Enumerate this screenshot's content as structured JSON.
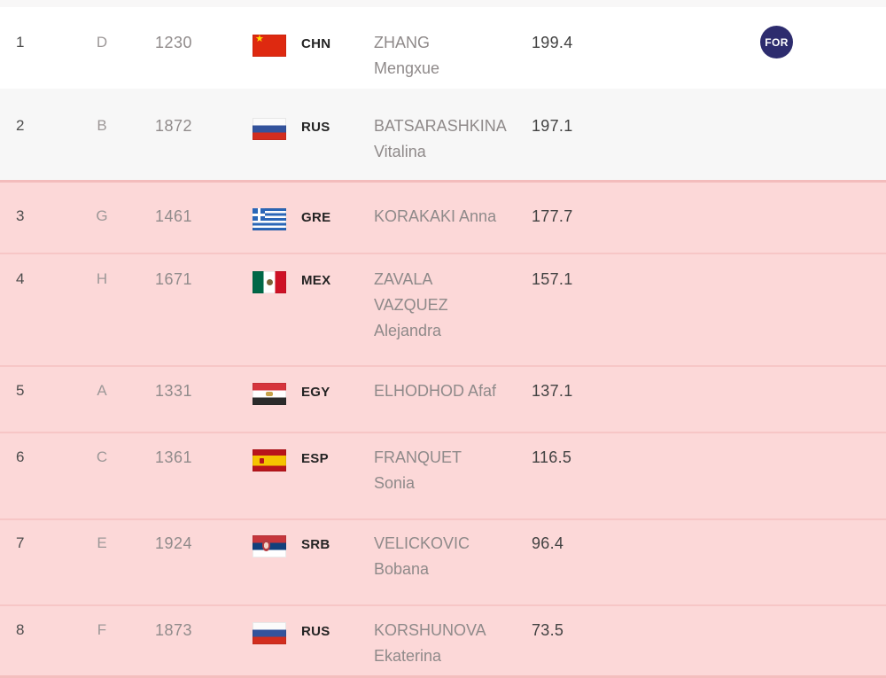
{
  "table": {
    "rows": [
      {
        "rank": "1",
        "lane": "D",
        "bib": "1230",
        "noc": "CHN",
        "flag": "chn",
        "name": "ZHANG\nMengxue",
        "score": "199.4",
        "badge": "FOR"
      },
      {
        "rank": "2",
        "lane": "B",
        "bib": "1872",
        "noc": "RUS",
        "flag": "rus",
        "name": "BATSARASHKINA\nVitalina",
        "score": "197.1"
      },
      {
        "rank": "3",
        "lane": "G",
        "bib": "1461",
        "noc": "GRE",
        "flag": "gre",
        "name": "KORAKAKI Anna",
        "score": "177.7"
      },
      {
        "rank": "4",
        "lane": "H",
        "bib": "1671",
        "noc": "MEX",
        "flag": "mex",
        "name": "ZAVALA\nVAZQUEZ\nAlejandra",
        "score": "157.1"
      },
      {
        "rank": "5",
        "lane": "A",
        "bib": "1331",
        "noc": "EGY",
        "flag": "egy",
        "name": "ELHODHOD Afaf",
        "score": "137.1"
      },
      {
        "rank": "6",
        "lane": "C",
        "bib": "1361",
        "noc": "ESP",
        "flag": "esp",
        "name": "FRANQUET\nSonia",
        "score": "116.5"
      },
      {
        "rank": "7",
        "lane": "E",
        "bib": "1924",
        "noc": "SRB",
        "flag": "srb",
        "name": "VELICKOVIC\nBobana",
        "score": "96.4"
      },
      {
        "rank": "8",
        "lane": "F",
        "bib": "1873",
        "noc": "RUS",
        "flag": "rus",
        "name": "KORSHUNOVA\nEkaterina",
        "score": "73.5"
      }
    ]
  },
  "theme": {
    "row_white": "#ffffff",
    "row_gray": "#f7f7f7",
    "row_pink": "#fcd8d8",
    "divider_pink": "#f5c0c0",
    "badge_bg": "#2d2c6e",
    "badge_text": "#ffffff"
  }
}
